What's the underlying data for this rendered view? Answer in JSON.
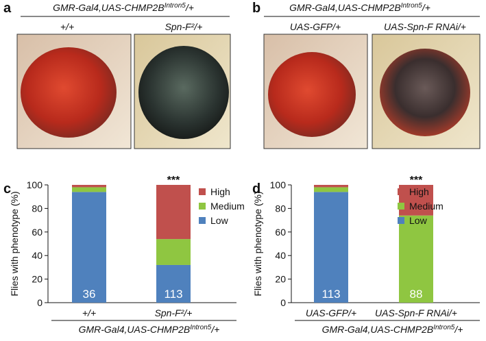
{
  "panels": {
    "a": {
      "letter": "a",
      "genotype": [
        "GMR-Gal4,UAS-CHMP2B",
        "Intron5",
        "/+"
      ],
      "labels": [
        "+/+",
        "Spn-F²/+"
      ]
    },
    "b": {
      "letter": "b",
      "genotype": [
        "GMR-Gal4,UAS-CHMP2B",
        "Intron5",
        "/+"
      ],
      "labels": [
        "UAS-GFP/+",
        "UAS-Spn-F RNAi/+"
      ]
    }
  },
  "chart_data": [
    {
      "type": "stacked_bar",
      "letter": "c",
      "y_label": "Flies with phenotype (%)",
      "categories": [
        "+/+",
        "Spn-F²/+"
      ],
      "series": [
        {
          "name": "Low",
          "color": "#4f81bd",
          "values": [
            94,
            32
          ]
        },
        {
          "name": "Medium",
          "color": "#8fc641",
          "values": [
            4,
            22
          ]
        },
        {
          "name": "High",
          "color": "#c0504d",
          "values": [
            2,
            46
          ]
        }
      ],
      "n_labels": [
        "36",
        "113"
      ],
      "annotation": "***",
      "genotype": [
        "GMR-Gal4,UAS-CHMP2B",
        "Intron5",
        "/+"
      ],
      "ylim": [
        0,
        100
      ],
      "yticks": [
        0,
        20,
        40,
        60,
        80,
        100
      ]
    },
    {
      "type": "stacked_bar",
      "letter": "d",
      "y_label": "Flies with phenotype (%)",
      "categories": [
        "UAS-GFP/+",
        "UAS-Spn-F RNAi/+"
      ],
      "series": [
        {
          "name": "Low",
          "color": "#4f81bd",
          "values": [
            94,
            0
          ]
        },
        {
          "name": "Medium",
          "color": "#8fc641",
          "values": [
            4,
            74
          ]
        },
        {
          "name": "High",
          "color": "#c0504d",
          "values": [
            2,
            26
          ]
        }
      ],
      "n_labels": [
        "113",
        "88"
      ],
      "annotation": "***",
      "genotype": [
        "GMR-Gal4,UAS-CHMP2B",
        "Intron5",
        "/+"
      ],
      "ylim": [
        0,
        100
      ],
      "yticks": [
        0,
        20,
        40,
        60,
        80,
        100
      ]
    }
  ]
}
